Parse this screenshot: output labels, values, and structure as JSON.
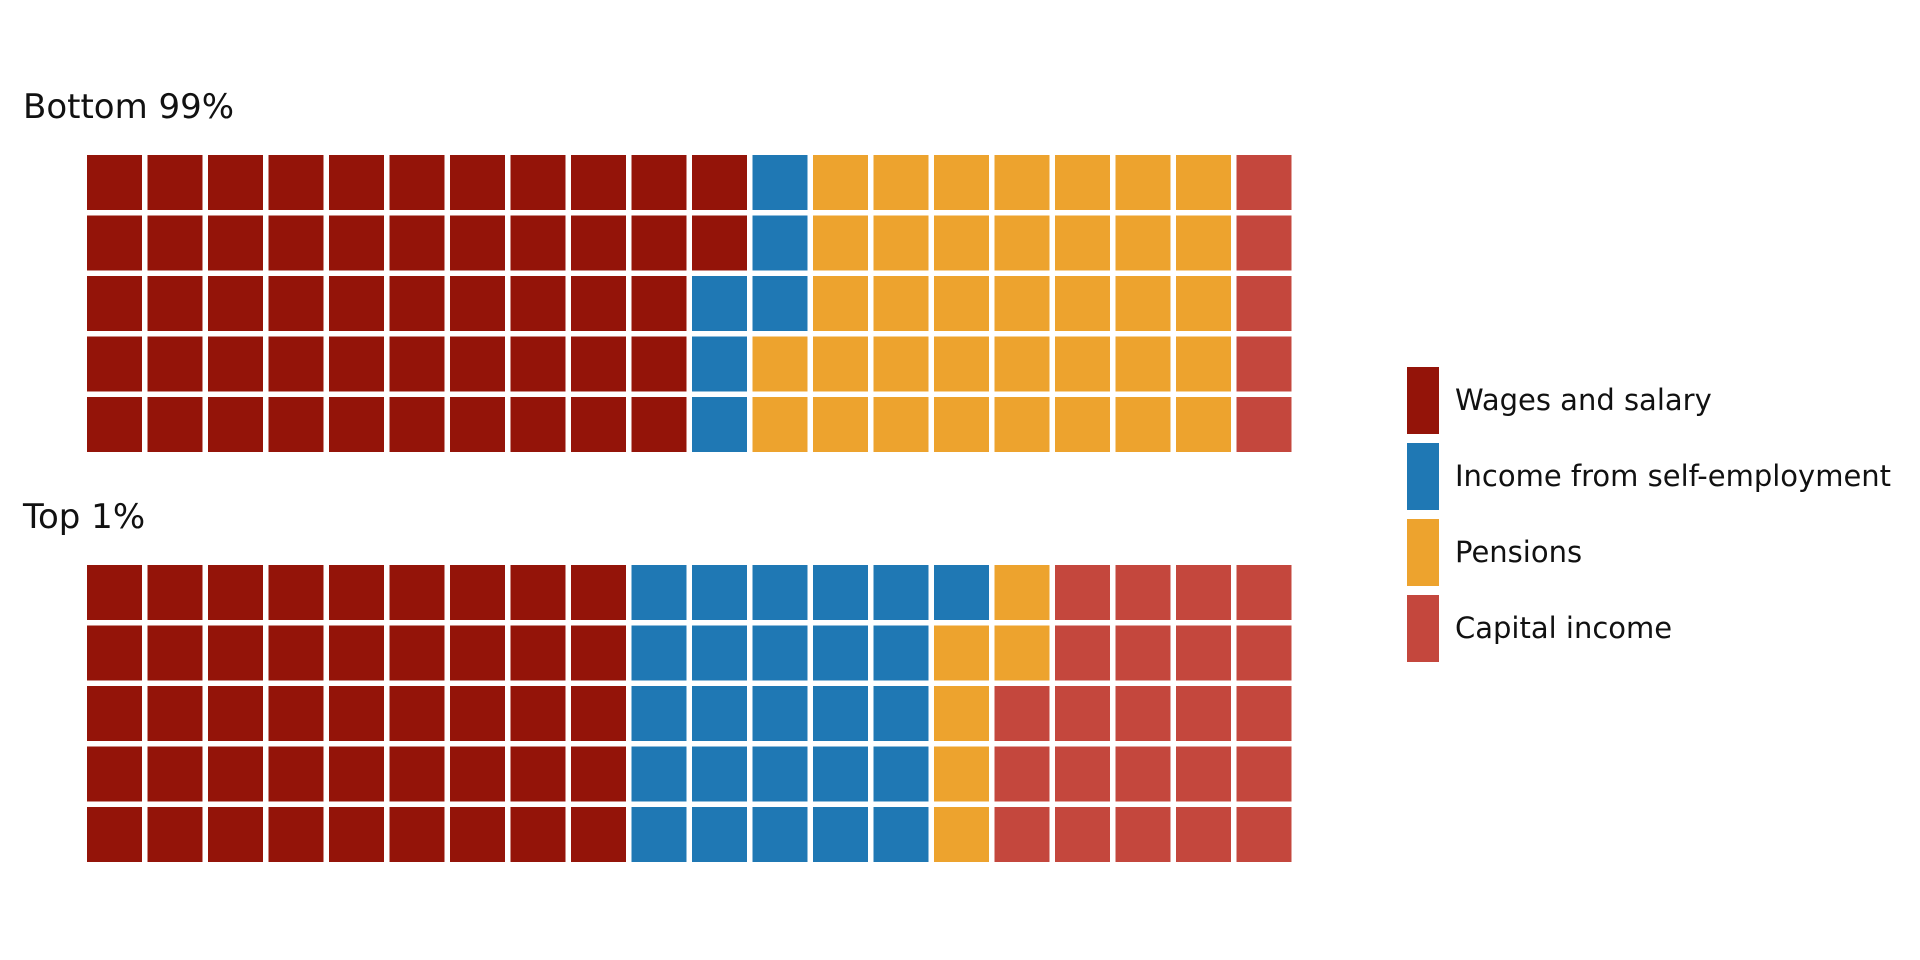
{
  "colors": {
    "wages": "#941409",
    "self": "#1f78b4",
    "pensions": "#eda32e",
    "capital": "#c4473d",
    "background": "#ffffff"
  },
  "legend": [
    {
      "key": "wages",
      "label": "Wages and salary"
    },
    {
      "key": "self",
      "label": "Income from self-employment"
    },
    {
      "key": "pensions",
      "label": "Pensions"
    },
    {
      "key": "capital",
      "label": "Capital income"
    }
  ],
  "chart_data": [
    {
      "type": "waffle",
      "title": "Bottom 99%",
      "rows": 5,
      "columns": 20,
      "categories": [
        "Wages and salary",
        "Income from self-employment",
        "Pensions",
        "Capital income"
      ],
      "values": [
        52,
        6,
        37,
        5
      ]
    },
    {
      "type": "waffle",
      "title": "Top 1%",
      "rows": 5,
      "columns": 20,
      "categories": [
        "Wages and salary",
        "Income from self-employment",
        "Pensions",
        "Capital income"
      ],
      "values": [
        45,
        26,
        6,
        23
      ]
    }
  ]
}
